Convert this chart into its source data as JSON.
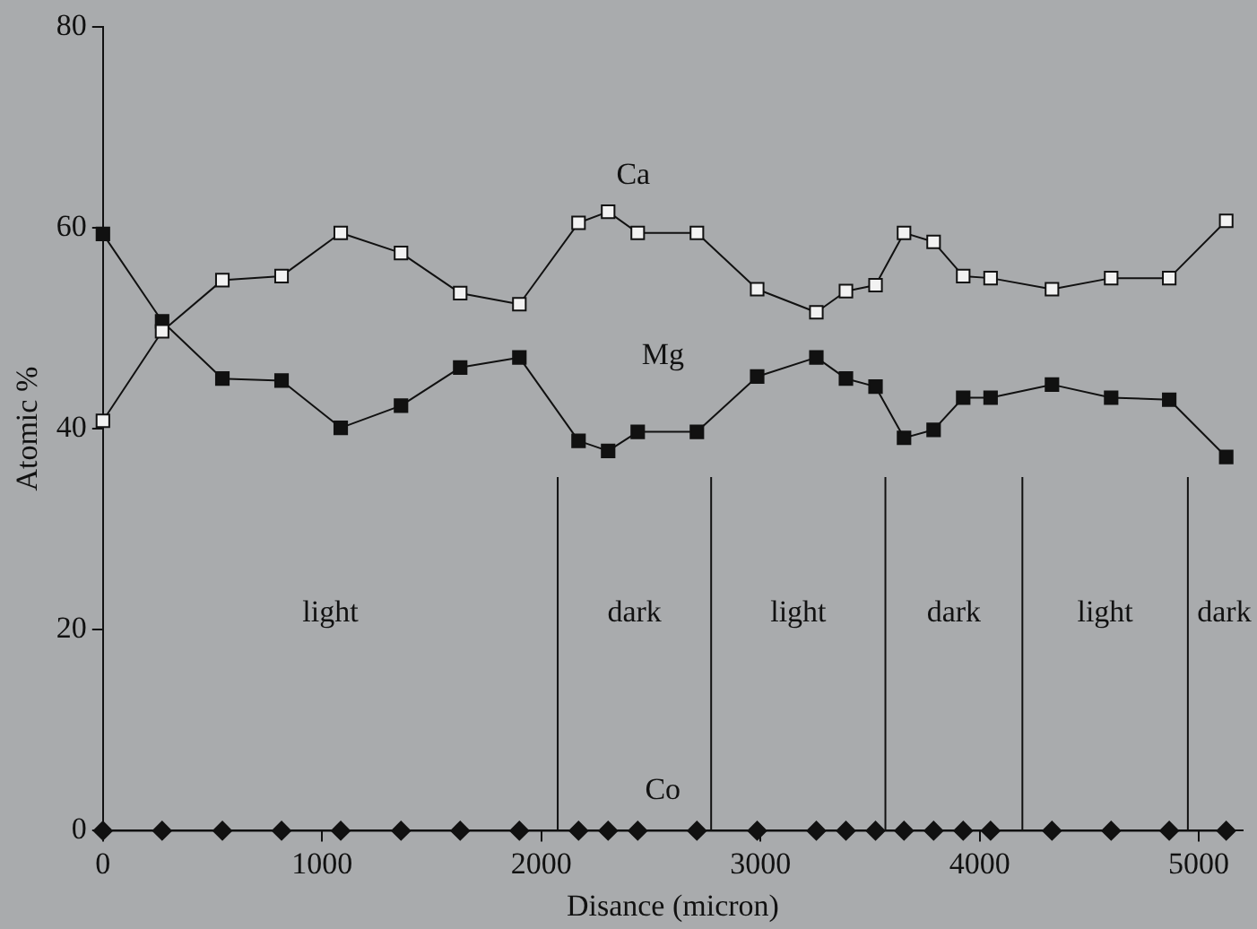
{
  "chart_data": {
    "type": "line",
    "xlabel": "Disance (micron)",
    "ylabel": "Atomic %",
    "x": [
      0,
      270,
      545,
      815,
      1085,
      1360,
      1630,
      1900,
      2170,
      2305,
      2440,
      2710,
      2985,
      3255,
      3390,
      3525,
      3655,
      3790,
      3925,
      4050,
      4330,
      4600,
      4865,
      5125
    ],
    "series": [
      {
        "name": "Ca",
        "color": "#f2f2f2",
        "marker": "square",
        "values": [
          40.8,
          49.7,
          54.8,
          55.2,
          59.5,
          57.5,
          53.5,
          52.4,
          60.5,
          61.6,
          59.5,
          59.5,
          53.9,
          51.6,
          53.7,
          54.3,
          59.5,
          58.6,
          55.2,
          55.0,
          53.9,
          55.0,
          55.0,
          60.7
        ]
      },
      {
        "name": "Mg",
        "color": "#111111",
        "marker": "square",
        "values": [
          59.4,
          50.7,
          45.0,
          44.8,
          40.1,
          42.3,
          46.1,
          47.1,
          38.8,
          37.8,
          39.7,
          39.7,
          45.2,
          47.1,
          45.0,
          44.2,
          39.1,
          39.9,
          43.1,
          43.1,
          44.4,
          43.1,
          42.9,
          37.2
        ]
      },
      {
        "name": "Co",
        "color": "#111111",
        "marker": "diamond",
        "values": [
          0,
          0,
          0,
          0,
          0,
          0,
          0,
          0,
          0,
          0,
          0,
          0,
          0,
          0,
          0,
          0,
          0,
          0,
          0,
          0,
          0,
          0,
          0,
          0
        ]
      }
    ],
    "xlim": [
      0,
      5200
    ],
    "xticks": [
      0,
      1000,
      2000,
      3000,
      4000,
      5000
    ],
    "ylim": [
      0,
      80
    ],
    "yticks": [
      0,
      20,
      40,
      60,
      80
    ],
    "grid": false,
    "legend": false,
    "line_style": "solid",
    "ref_lines": [
      {
        "axis": "x",
        "value": 2075
      },
      {
        "axis": "x",
        "value": 2775
      },
      {
        "axis": "x",
        "value": 3570
      },
      {
        "axis": "x",
        "value": 4195
      },
      {
        "axis": "x",
        "value": 4950
      }
    ],
    "annotations": [
      "light",
      "dark",
      "light",
      "dark",
      "light",
      "dark"
    ]
  }
}
